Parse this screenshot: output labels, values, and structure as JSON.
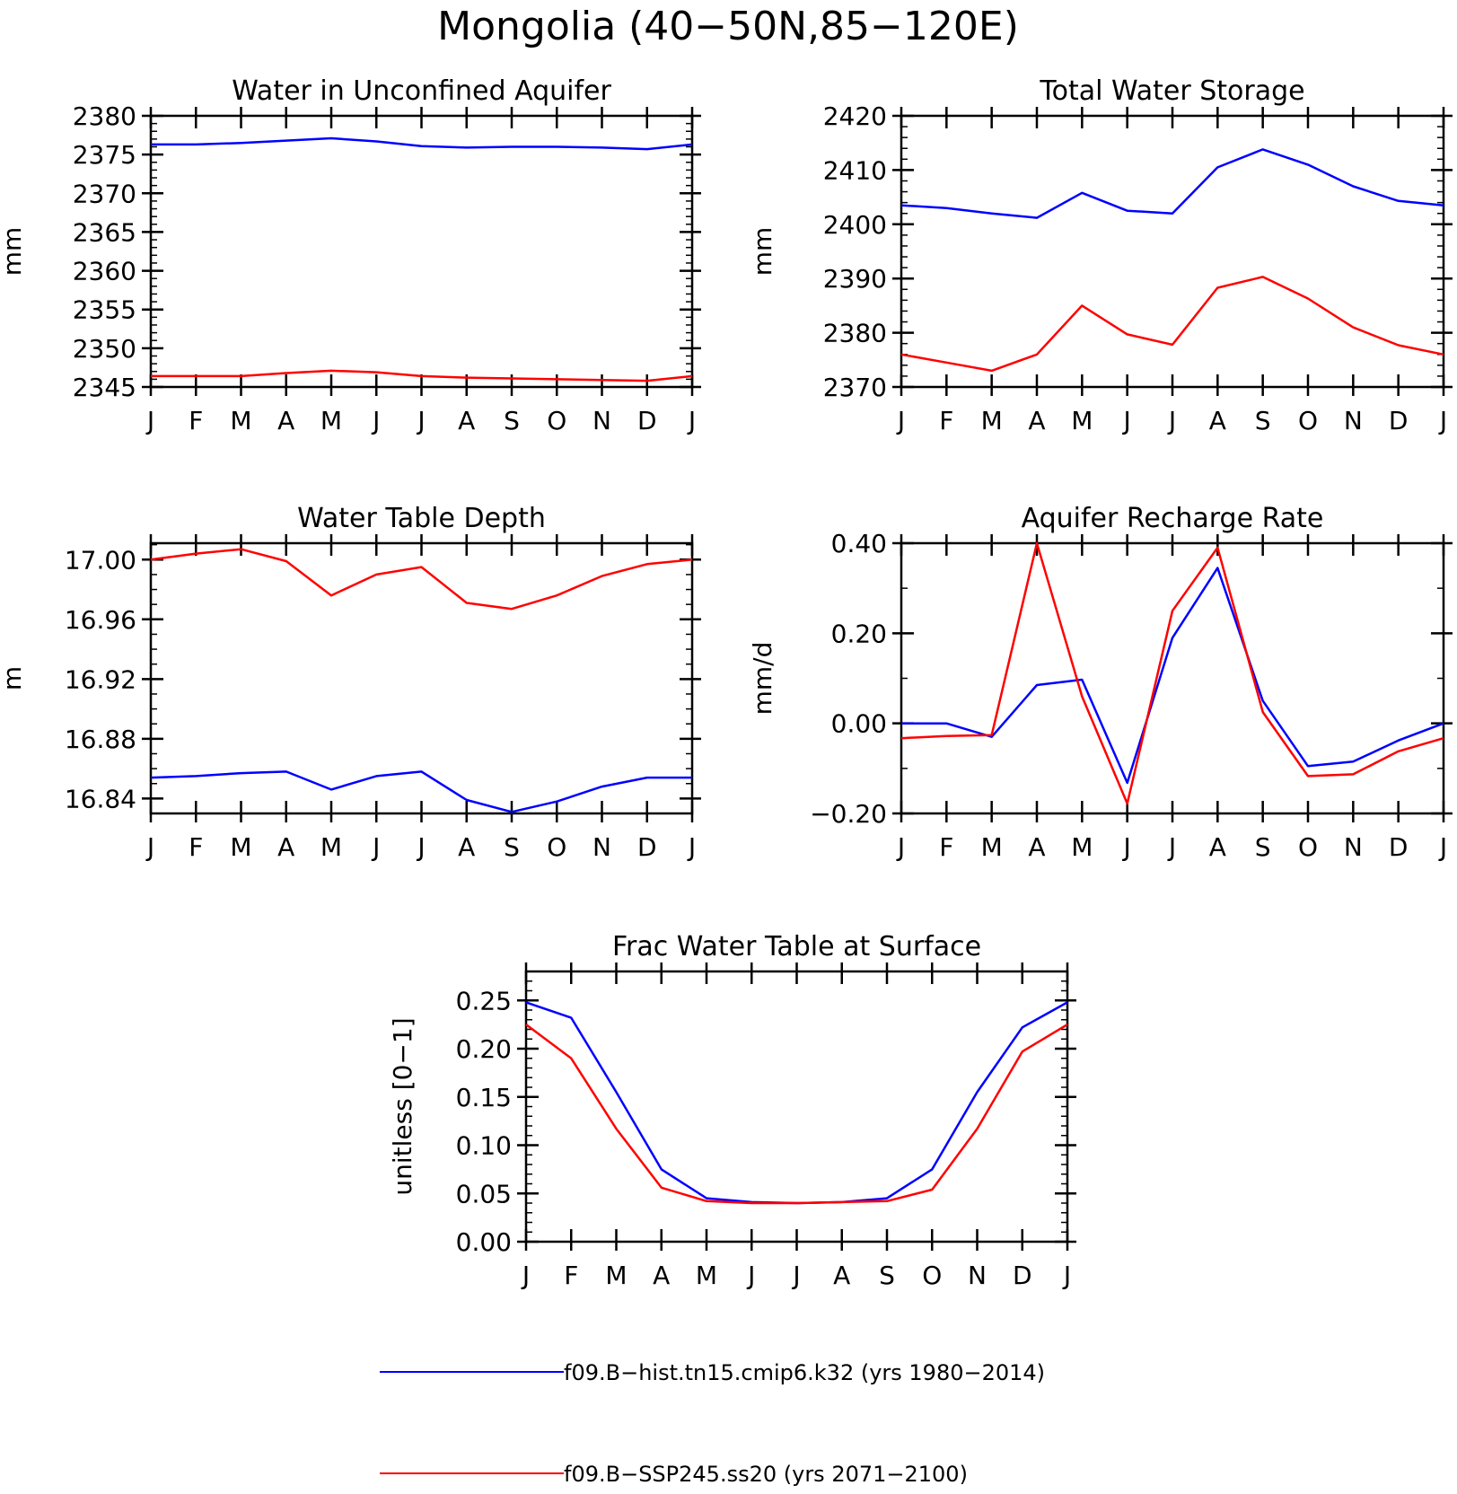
{
  "figure_title": "Mongolia (40−50N,85−120E)",
  "months": [
    "J",
    "F",
    "M",
    "A",
    "M",
    "J",
    "J",
    "A",
    "S",
    "O",
    "N",
    "D",
    "J"
  ],
  "series_colors": [
    "#0000ff",
    "#ff0000"
  ],
  "legend": [
    {
      "label": "f09.B−hist.tn15.cmip6.k32 (yrs 1980−2014)",
      "color": "#0000ff"
    },
    {
      "label": "f09.B−SSP245.ss20 (yrs 2071−2100)",
      "color": "#ff0000"
    }
  ],
  "chart_data": [
    {
      "type": "line",
      "title": "Water in Unconfined Aquifer",
      "ylabel": "mm",
      "ylim": [
        2345,
        2380
      ],
      "yticks": [
        2345,
        2350,
        2355,
        2360,
        2365,
        2370,
        2375,
        2380
      ],
      "ytick_labels": [
        "2345",
        "2350",
        "2355",
        "2360",
        "2365",
        "2370",
        "2375",
        "2380"
      ],
      "yminor": 1,
      "x": [
        "J",
        "F",
        "M",
        "A",
        "M",
        "J",
        "J",
        "A",
        "S",
        "O",
        "N",
        "D",
        "J"
      ],
      "series": [
        {
          "name": "f09.B−hist.tn15.cmip6.k32 (yrs 1980−2014)",
          "color": "#0000ff",
          "values": [
            2376.3,
            2376.3,
            2376.5,
            2376.8,
            2377.1,
            2376.7,
            2376.1,
            2375.9,
            2376.0,
            2376.0,
            2375.9,
            2375.7,
            2376.3
          ]
        },
        {
          "name": "f09.B−SSP245.ss20 (yrs 2071−2100)",
          "color": "#ff0000",
          "values": [
            2346.4,
            2346.4,
            2346.4,
            2346.8,
            2347.1,
            2346.9,
            2346.4,
            2346.2,
            2346.1,
            2346.0,
            2345.9,
            2345.8,
            2346.4
          ]
        }
      ]
    },
    {
      "type": "line",
      "title": "Total Water Storage",
      "ylabel": "mm",
      "ylim": [
        2370,
        2420
      ],
      "yticks": [
        2370,
        2380,
        2390,
        2400,
        2410,
        2420
      ],
      "ytick_labels": [
        "2370",
        "2380",
        "2390",
        "2400",
        "2410",
        "2420"
      ],
      "yminor": 2,
      "x": [
        "J",
        "F",
        "M",
        "A",
        "M",
        "J",
        "J",
        "A",
        "S",
        "O",
        "N",
        "D",
        "J"
      ],
      "series": [
        {
          "name": "f09.B−hist.tn15.cmip6.k32 (yrs 1980−2014)",
          "color": "#0000ff",
          "values": [
            2403.5,
            2403.0,
            2402.0,
            2401.2,
            2405.8,
            2402.5,
            2402.0,
            2410.5,
            2413.8,
            2411.0,
            2407.0,
            2404.3,
            2403.5
          ]
        },
        {
          "name": "f09.B−SSP245.ss20 (yrs 2071−2100)",
          "color": "#ff0000",
          "values": [
            2376.0,
            2374.5,
            2373.0,
            2376.0,
            2385.0,
            2379.7,
            2377.8,
            2388.3,
            2390.3,
            2386.3,
            2381.0,
            2377.7,
            2376.0
          ]
        }
      ]
    },
    {
      "type": "line",
      "title": "Water Table Depth",
      "ylabel": "m",
      "ylim": [
        16.83,
        17.011
      ],
      "yticks": [
        16.84,
        16.88,
        16.92,
        16.96,
        17.0
      ],
      "ytick_labels": [
        "16.84",
        "16.88",
        "16.92",
        "16.96",
        "17.00"
      ],
      "yminor": 0.01,
      "x": [
        "J",
        "F",
        "M",
        "A",
        "M",
        "J",
        "J",
        "A",
        "S",
        "O",
        "N",
        "D",
        "J"
      ],
      "series": [
        {
          "name": "f09.B−hist.tn15.cmip6.k32 (yrs 1980−2014)",
          "color": "#0000ff",
          "values": [
            16.854,
            16.855,
            16.857,
            16.858,
            16.846,
            16.855,
            16.858,
            16.839,
            16.831,
            16.838,
            16.848,
            16.854,
            16.854
          ]
        },
        {
          "name": "f09.B−SSP245.ss20 (yrs 2071−2100)",
          "color": "#ff0000",
          "values": [
            17.0,
            17.004,
            17.007,
            16.999,
            16.976,
            16.99,
            16.995,
            16.971,
            16.967,
            16.976,
            16.989,
            16.997,
            17.0
          ]
        }
      ]
    },
    {
      "type": "line",
      "title": "Aquifer Recharge Rate",
      "ylabel": "mm/d",
      "ylim": [
        -0.2,
        0.4
      ],
      "yticks": [
        -0.2,
        0.0,
        0.2,
        0.4
      ],
      "ytick_labels": [
        "−0.20",
        "0.00",
        "0.20",
        "0.40"
      ],
      "yminor": 0.1,
      "x": [
        "J",
        "F",
        "M",
        "A",
        "M",
        "J",
        "J",
        "A",
        "S",
        "O",
        "N",
        "D",
        "J"
      ],
      "series": [
        {
          "name": "f09.B−hist.tn15.cmip6.k32 (yrs 1980−2014)",
          "color": "#0000ff",
          "values": [
            0.0,
            0.0,
            -0.03,
            0.085,
            0.097,
            -0.132,
            0.19,
            0.345,
            0.05,
            -0.095,
            -0.085,
            -0.038,
            0.0
          ]
        },
        {
          "name": "f09.B−SSP245.ss20 (yrs 2071−2100)",
          "color": "#ff0000",
          "values": [
            -0.033,
            -0.028,
            -0.026,
            0.4,
            0.06,
            -0.178,
            0.25,
            0.39,
            0.025,
            -0.117,
            -0.113,
            -0.062,
            -0.033
          ]
        }
      ]
    },
    {
      "type": "line",
      "title": "Frac Water Table at Surface",
      "ylabel": "unitless [0−1]",
      "ylim": [
        0.0,
        0.28
      ],
      "yticks": [
        0.0,
        0.05,
        0.1,
        0.15,
        0.2,
        0.25
      ],
      "ytick_labels": [
        "0.00",
        "0.05",
        "0.10",
        "0.15",
        "0.20",
        "0.25"
      ],
      "yminor": 0.01,
      "x": [
        "J",
        "F",
        "M",
        "A",
        "M",
        "J",
        "J",
        "A",
        "S",
        "O",
        "N",
        "D",
        "J"
      ],
      "series": [
        {
          "name": "f09.B−hist.tn15.cmip6.k32 (yrs 1980−2014)",
          "color": "#0000ff",
          "values": [
            0.248,
            0.232,
            0.155,
            0.075,
            0.045,
            0.041,
            0.04,
            0.041,
            0.045,
            0.075,
            0.155,
            0.222,
            0.248
          ]
        },
        {
          "name": "f09.B−SSP245.ss20 (yrs 2071−2100)",
          "color": "#ff0000",
          "values": [
            0.225,
            0.19,
            0.117,
            0.056,
            0.042,
            0.04,
            0.04,
            0.041,
            0.042,
            0.054,
            0.117,
            0.197,
            0.225
          ]
        }
      ]
    }
  ]
}
